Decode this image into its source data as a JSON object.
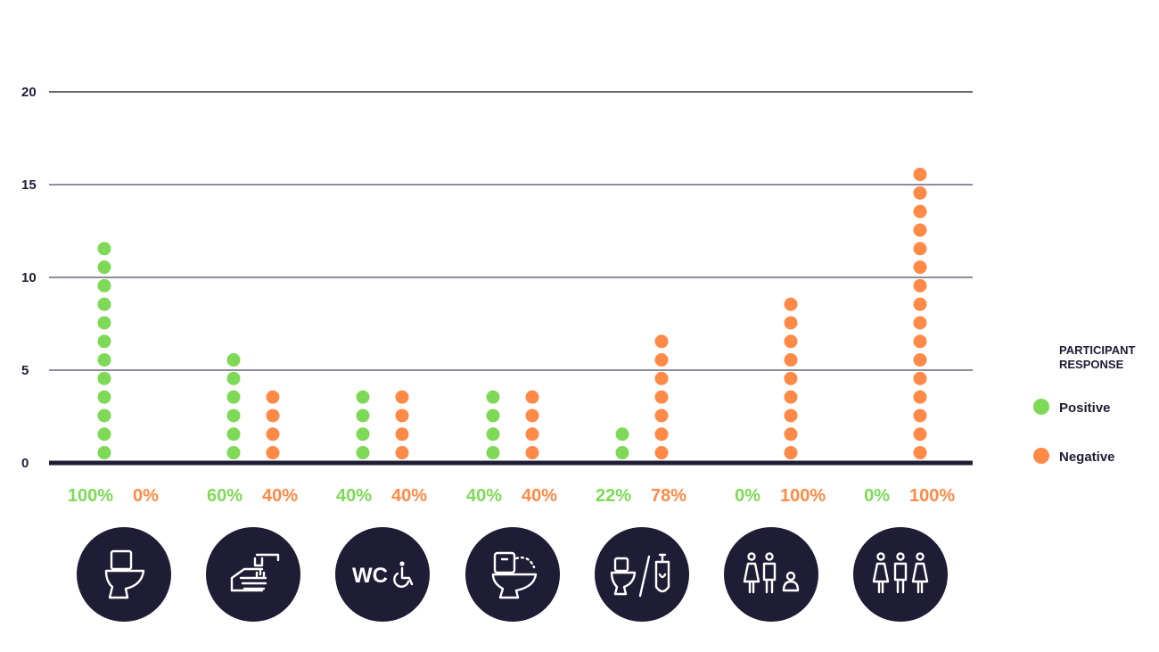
{
  "chart_data": {
    "type": "dot",
    "y_ticks": [
      0,
      5,
      10,
      15,
      20
    ],
    "ylim": [
      0,
      20
    ],
    "categories": [
      "toilet-icon",
      "handwash-icon",
      "accessible-wc-icon",
      "bidet-toilet-icon",
      "toilet-urinal-icon",
      "family-icon",
      "all-gender-icon"
    ],
    "series": [
      {
        "name": "Positive",
        "color": "#7ed957",
        "values": [
          12,
          6,
          4,
          4,
          2,
          0,
          0
        ]
      },
      {
        "name": "Negative",
        "color": "#ff8a47",
        "values": [
          0,
          4,
          4,
          4,
          7,
          9,
          16
        ]
      }
    ],
    "percent_labels": [
      {
        "positive": "100%",
        "negative": "0%"
      },
      {
        "positive": "60%",
        "negative": "40%"
      },
      {
        "positive": "40%",
        "negative": "40%"
      },
      {
        "positive": "40%",
        "negative": "40%"
      },
      {
        "positive": "22%",
        "negative": "78%"
      },
      {
        "positive": "0%",
        "negative": "100%"
      },
      {
        "positive": "0%",
        "negative": "100%"
      }
    ],
    "legend": {
      "title_line1": "PARTICIPANT",
      "title_line2": "RESPONSE",
      "position": "right",
      "items": [
        {
          "label": "Positive",
          "color": "#7ed957"
        },
        {
          "label": "Negative",
          "color": "#ff8a47"
        }
      ]
    },
    "icon_texts": {
      "wc": "WC"
    },
    "colors": {
      "axis": "#1f1c35",
      "grid": "#4a4766",
      "icon_bg": "#1f1c35"
    }
  }
}
